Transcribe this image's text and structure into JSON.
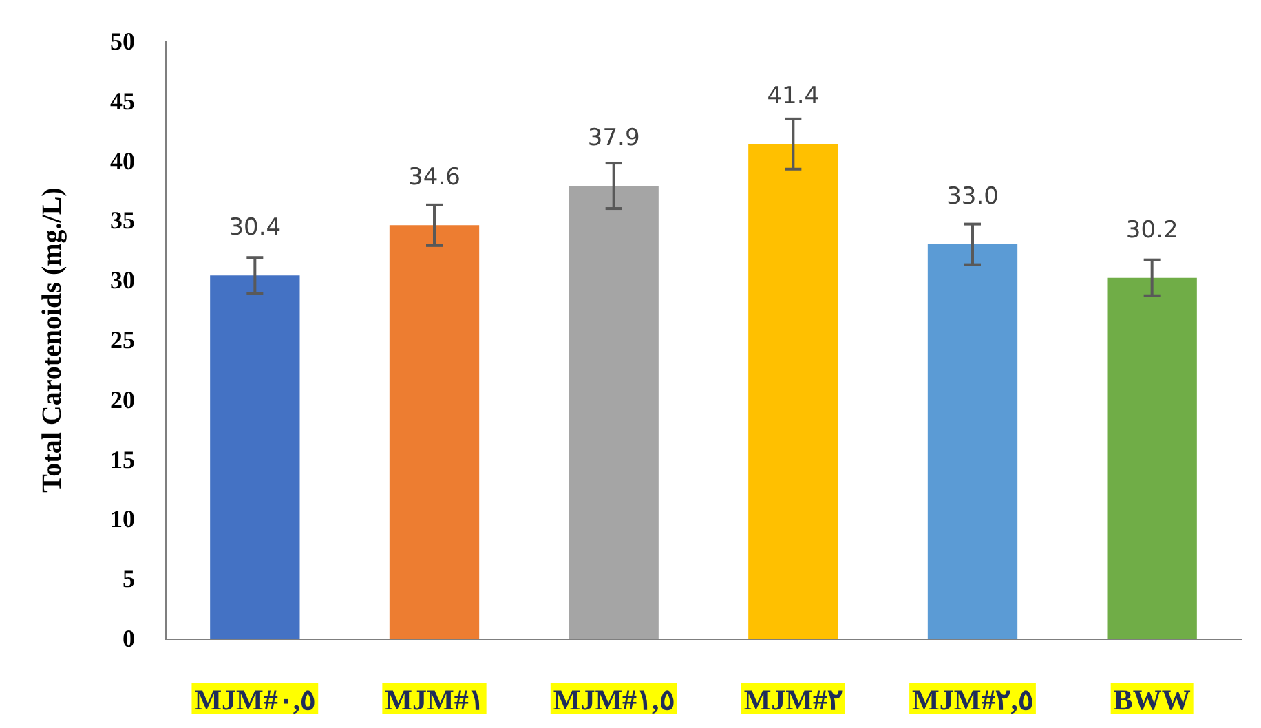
{
  "chart_data": {
    "type": "bar",
    "ylabel": "Total Carotenoids (mg./L)",
    "categories": [
      "MJM#٠,٥",
      "MJM#١",
      "MJM#١,٥",
      "MJM#٢",
      "MJM#٢,٥",
      "BWW"
    ],
    "values": [
      30.4,
      34.6,
      37.9,
      41.4,
      33.0,
      30.2
    ],
    "value_labels": [
      "30.4",
      "34.6",
      "37.9",
      "41.4",
      "33.0",
      "30.2"
    ],
    "errors": [
      1.5,
      1.7,
      1.9,
      2.1,
      1.7,
      1.5
    ],
    "colors": [
      "#4472c4",
      "#ed7d31",
      "#a5a5a5",
      "#ffc000",
      "#5b9bd5",
      "#70ad47"
    ],
    "ylim": [
      0,
      50
    ],
    "yticks": [
      0,
      5,
      10,
      15,
      20,
      25,
      30,
      35,
      40,
      45,
      50
    ],
    "grid": false
  }
}
